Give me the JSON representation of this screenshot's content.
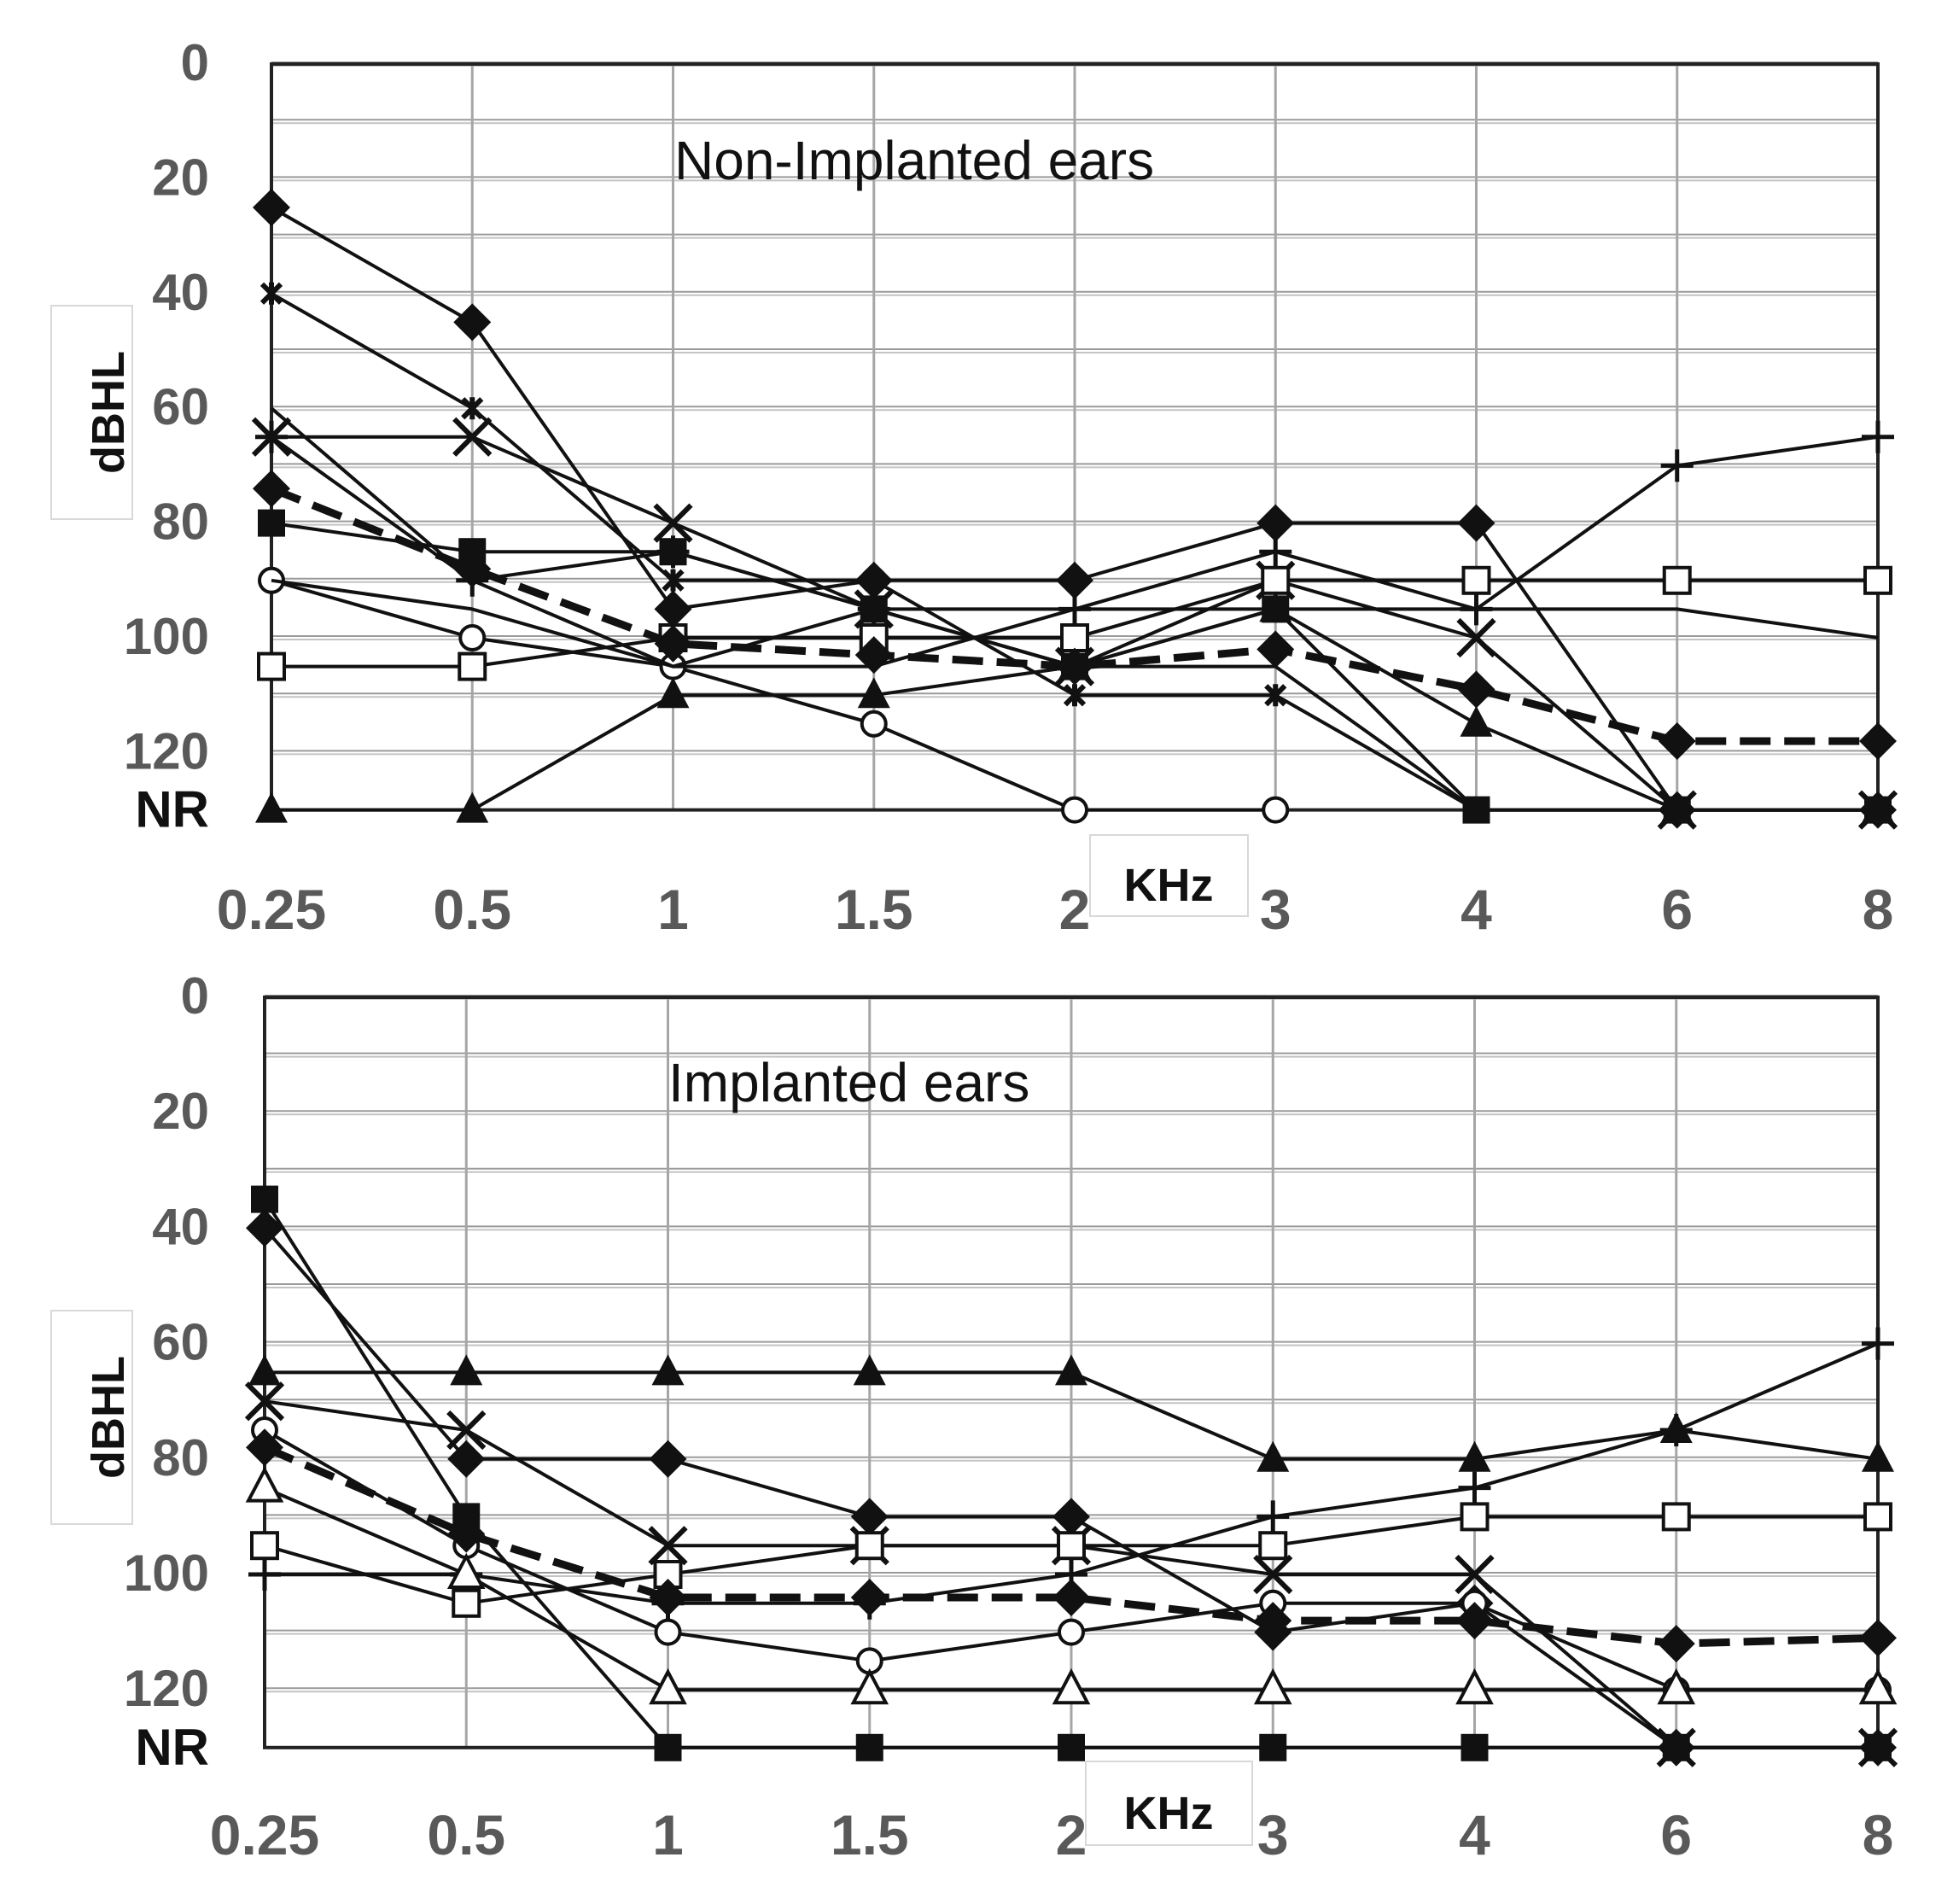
{
  "chart_data": [
    {
      "type": "line",
      "title": "Non-Implanted ears",
      "ylabel": "dBHL",
      "xlabel": "KHz",
      "categories": [
        "0.25",
        "0.5",
        "1",
        "1.5",
        "2",
        "3",
        "4",
        "6",
        "8"
      ],
      "y_ticks": [
        "0",
        "20",
        "40",
        "60",
        "80",
        "100",
        "120",
        "NR"
      ],
      "ylim": [
        0,
        130
      ],
      "y_inverted": true,
      "nr_level": 130,
      "grid": true,
      "series": [
        {
          "marker": "diamond",
          "dashed": false,
          "values": [
            25,
            45,
            95,
            90,
            90,
            80,
            80,
            130,
            130
          ]
        },
        {
          "marker": "plus",
          "dashed": false,
          "values": [
            65,
            90,
            85,
            95,
            95,
            85,
            95,
            70,
            65
          ]
        },
        {
          "marker": "star",
          "dashed": false,
          "values": [
            40,
            60,
            90,
            90,
            110,
            110,
            130,
            130,
            130
          ]
        },
        {
          "marker": "x",
          "dashed": false,
          "values": [
            65,
            65,
            80,
            95,
            105,
            90,
            100,
            130,
            130
          ]
        },
        {
          "marker": "square-open",
          "dashed": false,
          "values": [
            105,
            105,
            100,
            100,
            100,
            90,
            90,
            90,
            90
          ]
        },
        {
          "marker": "circle-open",
          "dashed": false,
          "values": [
            90,
            100,
            105,
            115,
            130,
            130,
            null,
            null,
            null
          ]
        },
        {
          "marker": "triangle",
          "dashed": false,
          "values": [
            130,
            130,
            110,
            110,
            105,
            95,
            115,
            130,
            130
          ]
        },
        {
          "marker": "square",
          "dashed": false,
          "values": [
            80,
            85,
            85,
            95,
            105,
            95,
            130,
            130,
            130
          ]
        },
        {
          "marker": "none",
          "dashed": false,
          "values": [
            90,
            95,
            105,
            105,
            95,
            95,
            95,
            95,
            100
          ]
        },
        {
          "marker": "none",
          "dashed": false,
          "values": [
            60,
            90,
            105,
            95,
            105,
            105,
            130,
            130,
            130
          ]
        },
        {
          "marker": "diamond",
          "dashed": true,
          "values": [
            74,
            88,
            101,
            103,
            105,
            102,
            109,
            118,
            118
          ]
        }
      ]
    },
    {
      "type": "line",
      "title": "Implanted ears",
      "ylabel": "dBHL",
      "xlabel": "KHz",
      "categories": [
        "0.25",
        "0.5",
        "1",
        "1.5",
        "2",
        "3",
        "4",
        "6",
        "8"
      ],
      "y_ticks": [
        "0",
        "20",
        "40",
        "60",
        "80",
        "100",
        "120",
        "NR"
      ],
      "ylim": [
        0,
        130
      ],
      "y_inverted": true,
      "nr_level": 130,
      "grid": true,
      "series": [
        {
          "marker": "square",
          "dashed": false,
          "values": [
            35,
            90,
            130,
            130,
            130,
            130,
            130,
            130,
            130
          ]
        },
        {
          "marker": "diamond",
          "dashed": false,
          "values": [
            40,
            80,
            80,
            90,
            90,
            110,
            105,
            130,
            130
          ]
        },
        {
          "marker": "triangle",
          "dashed": false,
          "values": [
            65,
            65,
            65,
            65,
            65,
            80,
            80,
            75,
            80
          ]
        },
        {
          "marker": "plus",
          "dashed": false,
          "values": [
            100,
            100,
            105,
            105,
            100,
            90,
            85,
            75,
            60
          ]
        },
        {
          "marker": "x",
          "dashed": false,
          "values": [
            70,
            75,
            95,
            95,
            95,
            100,
            100,
            130,
            130
          ]
        },
        {
          "marker": "square-open",
          "dashed": false,
          "values": [
            95,
            105,
            100,
            95,
            95,
            95,
            90,
            90,
            90
          ]
        },
        {
          "marker": "circle-open",
          "dashed": false,
          "values": [
            75,
            95,
            110,
            115,
            110,
            105,
            105,
            120,
            120
          ]
        },
        {
          "marker": "triangle-open",
          "dashed": false,
          "values": [
            85,
            100,
            120,
            120,
            120,
            120,
            120,
            120,
            120
          ]
        },
        {
          "marker": "diamond",
          "dashed": true,
          "values": [
            78,
            93,
            104,
            104,
            104,
            108,
            108,
            112,
            111
          ]
        }
      ]
    }
  ]
}
